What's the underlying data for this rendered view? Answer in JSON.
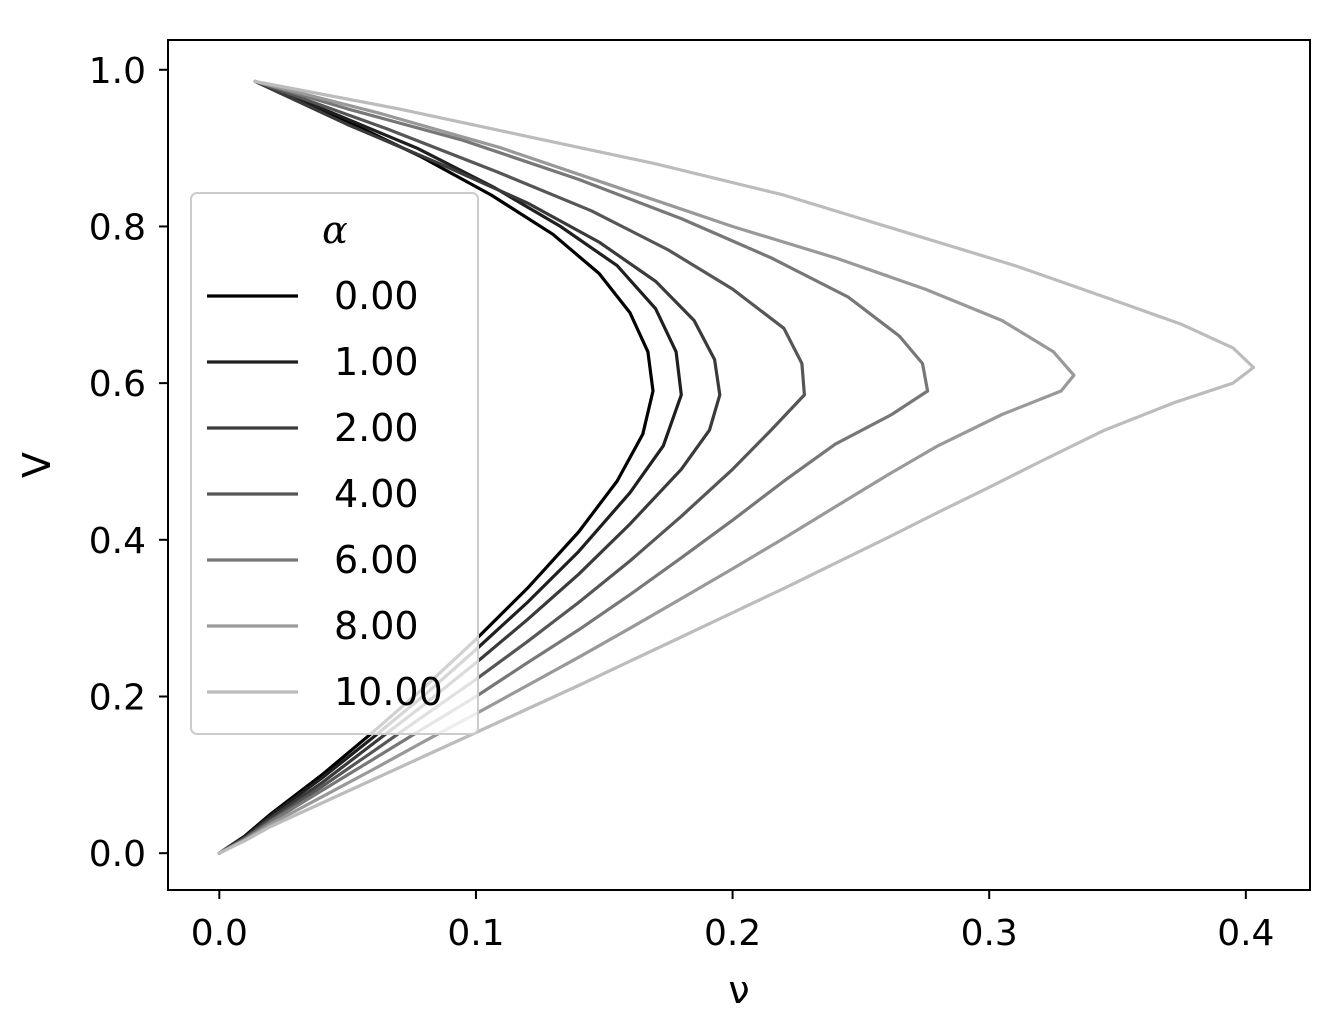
{
  "chart_data": {
    "type": "line",
    "xlabel": "ν",
    "ylabel": "V",
    "xlim": [
      -0.02,
      0.425
    ],
    "ylim": [
      -0.047,
      1.038
    ],
    "xticks": [
      {
        "value": 0.0,
        "label": "0.0"
      },
      {
        "value": 0.1,
        "label": "0.1"
      },
      {
        "value": 0.2,
        "label": "0.2"
      },
      {
        "value": 0.3,
        "label": "0.3"
      },
      {
        "value": 0.4,
        "label": "0.4"
      }
    ],
    "yticks": [
      {
        "value": 0.0,
        "label": "0.0"
      },
      {
        "value": 0.2,
        "label": "0.2"
      },
      {
        "value": 0.4,
        "label": "0.4"
      },
      {
        "value": 0.6,
        "label": "0.6"
      },
      {
        "value": 0.8,
        "label": "0.8"
      },
      {
        "value": 1.0,
        "label": "1.0"
      }
    ],
    "grid": false,
    "legend": {
      "title": "α",
      "placement": "center-left"
    },
    "series": [
      {
        "name": "0.00",
        "color": "#000000",
        "points": [
          [
            0.0,
            0.0
          ],
          [
            0.01,
            0.022
          ],
          [
            0.02,
            0.05
          ],
          [
            0.04,
            0.1
          ],
          [
            0.06,
            0.155
          ],
          [
            0.08,
            0.212
          ],
          [
            0.1,
            0.273
          ],
          [
            0.12,
            0.338
          ],
          [
            0.14,
            0.41
          ],
          [
            0.155,
            0.475
          ],
          [
            0.165,
            0.535
          ],
          [
            0.169,
            0.59
          ],
          [
            0.167,
            0.64
          ],
          [
            0.16,
            0.69
          ],
          [
            0.148,
            0.74
          ],
          [
            0.13,
            0.79
          ],
          [
            0.106,
            0.84
          ],
          [
            0.078,
            0.89
          ],
          [
            0.046,
            0.94
          ],
          [
            0.014,
            0.985
          ]
        ]
      },
      {
        "name": "1.00",
        "color": "#1f1f1f",
        "points": [
          [
            0.0,
            0.0
          ],
          [
            0.01,
            0.021
          ],
          [
            0.02,
            0.048
          ],
          [
            0.04,
            0.096
          ],
          [
            0.06,
            0.148
          ],
          [
            0.08,
            0.202
          ],
          [
            0.1,
            0.26
          ],
          [
            0.12,
            0.32
          ],
          [
            0.14,
            0.385
          ],
          [
            0.16,
            0.46
          ],
          [
            0.173,
            0.52
          ],
          [
            0.18,
            0.585
          ],
          [
            0.178,
            0.64
          ],
          [
            0.17,
            0.695
          ],
          [
            0.155,
            0.75
          ],
          [
            0.133,
            0.8
          ],
          [
            0.107,
            0.85
          ],
          [
            0.077,
            0.9
          ],
          [
            0.044,
            0.945
          ],
          [
            0.014,
            0.985
          ]
        ]
      },
      {
        "name": "2.00",
        "color": "#3a3a3a",
        "points": [
          [
            0.0,
            0.0
          ],
          [
            0.01,
            0.02
          ],
          [
            0.02,
            0.045
          ],
          [
            0.04,
            0.09
          ],
          [
            0.06,
            0.14
          ],
          [
            0.08,
            0.19
          ],
          [
            0.1,
            0.243
          ],
          [
            0.12,
            0.298
          ],
          [
            0.14,
            0.356
          ],
          [
            0.16,
            0.42
          ],
          [
            0.18,
            0.49
          ],
          [
            0.191,
            0.54
          ],
          [
            0.195,
            0.585
          ],
          [
            0.193,
            0.63
          ],
          [
            0.185,
            0.68
          ],
          [
            0.17,
            0.73
          ],
          [
            0.148,
            0.78
          ],
          [
            0.12,
            0.83
          ],
          [
            0.086,
            0.88
          ],
          [
            0.05,
            0.93
          ],
          [
            0.014,
            0.985
          ]
        ]
      },
      {
        "name": "4.00",
        "color": "#565656",
        "points": [
          [
            0.0,
            0.0
          ],
          [
            0.01,
            0.019
          ],
          [
            0.02,
            0.042
          ],
          [
            0.04,
            0.085
          ],
          [
            0.06,
            0.13
          ],
          [
            0.08,
            0.176
          ],
          [
            0.1,
            0.222
          ],
          [
            0.12,
            0.27
          ],
          [
            0.14,
            0.32
          ],
          [
            0.16,
            0.373
          ],
          [
            0.18,
            0.43
          ],
          [
            0.2,
            0.49
          ],
          [
            0.215,
            0.54
          ],
          [
            0.228,
            0.585
          ],
          [
            0.227,
            0.625
          ],
          [
            0.22,
            0.67
          ],
          [
            0.2,
            0.72
          ],
          [
            0.175,
            0.77
          ],
          [
            0.145,
            0.82
          ],
          [
            0.108,
            0.87
          ],
          [
            0.065,
            0.925
          ],
          [
            0.014,
            0.985
          ]
        ]
      },
      {
        "name": "6.00",
        "color": "#777777",
        "points": [
          [
            0.0,
            0.0
          ],
          [
            0.01,
            0.018
          ],
          [
            0.02,
            0.04
          ],
          [
            0.04,
            0.08
          ],
          [
            0.06,
            0.12
          ],
          [
            0.08,
            0.16
          ],
          [
            0.1,
            0.2
          ],
          [
            0.12,
            0.243
          ],
          [
            0.14,
            0.285
          ],
          [
            0.16,
            0.33
          ],
          [
            0.18,
            0.377
          ],
          [
            0.2,
            0.425
          ],
          [
            0.22,
            0.475
          ],
          [
            0.24,
            0.522
          ],
          [
            0.262,
            0.56
          ],
          [
            0.276,
            0.59
          ],
          [
            0.274,
            0.625
          ],
          [
            0.265,
            0.66
          ],
          [
            0.245,
            0.71
          ],
          [
            0.215,
            0.76
          ],
          [
            0.18,
            0.81
          ],
          [
            0.14,
            0.86
          ],
          [
            0.095,
            0.91
          ],
          [
            0.05,
            0.95
          ],
          [
            0.014,
            0.985
          ]
        ]
      },
      {
        "name": "8.00",
        "color": "#999999",
        "points": [
          [
            0.0,
            0.0
          ],
          [
            0.01,
            0.017
          ],
          [
            0.02,
            0.037
          ],
          [
            0.04,
            0.072
          ],
          [
            0.06,
            0.107
          ],
          [
            0.08,
            0.143
          ],
          [
            0.1,
            0.178
          ],
          [
            0.12,
            0.214
          ],
          [
            0.14,
            0.25
          ],
          [
            0.16,
            0.287
          ],
          [
            0.18,
            0.325
          ],
          [
            0.2,
            0.363
          ],
          [
            0.22,
            0.402
          ],
          [
            0.24,
            0.442
          ],
          [
            0.26,
            0.482
          ],
          [
            0.28,
            0.52
          ],
          [
            0.305,
            0.56
          ],
          [
            0.328,
            0.59
          ],
          [
            0.333,
            0.61
          ],
          [
            0.325,
            0.64
          ],
          [
            0.305,
            0.68
          ],
          [
            0.275,
            0.72
          ],
          [
            0.24,
            0.76
          ],
          [
            0.2,
            0.8
          ],
          [
            0.155,
            0.85
          ],
          [
            0.11,
            0.9
          ],
          [
            0.062,
            0.945
          ],
          [
            0.014,
            0.985
          ]
        ]
      },
      {
        "name": "10.00",
        "color": "#bcbcbc",
        "points": [
          [
            0.0,
            0.0
          ],
          [
            0.01,
            0.016
          ],
          [
            0.02,
            0.034
          ],
          [
            0.04,
            0.064
          ],
          [
            0.06,
            0.094
          ],
          [
            0.08,
            0.124
          ],
          [
            0.1,
            0.154
          ],
          [
            0.12,
            0.184
          ],
          [
            0.14,
            0.214
          ],
          [
            0.16,
            0.245
          ],
          [
            0.18,
            0.276
          ],
          [
            0.2,
            0.307
          ],
          [
            0.22,
            0.338
          ],
          [
            0.24,
            0.37
          ],
          [
            0.26,
            0.402
          ],
          [
            0.28,
            0.435
          ],
          [
            0.3,
            0.467
          ],
          [
            0.32,
            0.5
          ],
          [
            0.345,
            0.54
          ],
          [
            0.372,
            0.575
          ],
          [
            0.395,
            0.6
          ],
          [
            0.403,
            0.62
          ],
          [
            0.395,
            0.645
          ],
          [
            0.375,
            0.675
          ],
          [
            0.345,
            0.71
          ],
          [
            0.31,
            0.75
          ],
          [
            0.27,
            0.79
          ],
          [
            0.22,
            0.84
          ],
          [
            0.17,
            0.88
          ],
          [
            0.12,
            0.915
          ],
          [
            0.07,
            0.95
          ],
          [
            0.014,
            0.985
          ]
        ]
      }
    ]
  }
}
